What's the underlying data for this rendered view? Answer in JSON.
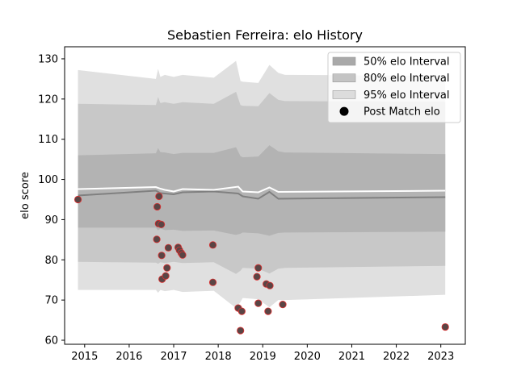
{
  "chart_data": {
    "type": "line",
    "title": "Sebastien Ferreira: elo History",
    "xlabel": "",
    "ylabel": "elo score",
    "xlim": [
      2014.55,
      2023.55
    ],
    "ylim": [
      59,
      133
    ],
    "x_ticks": [
      2015,
      2016,
      2017,
      2018,
      2019,
      2020,
      2021,
      2022,
      2023
    ],
    "y_ticks": [
      60,
      70,
      80,
      90,
      100,
      110,
      120,
      130
    ],
    "grid": false,
    "legend_position": "top-right",
    "series": [
      {
        "name": "95% elo Interval",
        "kind": "band",
        "color": "#e0e0e0",
        "x": [
          2014.85,
          2016.6,
          2016.65,
          2016.7,
          2016.8,
          2017.0,
          2017.2,
          2017.9,
          2018.4,
          2018.5,
          2018.55,
          2018.9,
          2019.15,
          2019.35,
          2019.5,
          2023.1
        ],
        "upper": [
          127.2,
          125,
          127.5,
          125.5,
          126,
          125.5,
          126,
          125.3,
          129.5,
          124.5,
          124.3,
          124,
          128.5,
          126.5,
          126,
          125.8
        ],
        "lower": [
          72.5,
          72.5,
          71.8,
          72.5,
          72.2,
          72.5,
          72,
          72.3,
          68,
          69.5,
          70.5,
          70.2,
          68.2,
          70,
          70,
          71.3
        ]
      },
      {
        "name": "80% elo Interval",
        "kind": "band",
        "color": "#c8c8c8",
        "x": [
          2014.85,
          2016.6,
          2016.65,
          2016.7,
          2016.8,
          2017.0,
          2017.2,
          2017.9,
          2018.4,
          2018.5,
          2018.55,
          2018.9,
          2019.15,
          2019.35,
          2019.5,
          2023.1
        ],
        "upper": [
          118.8,
          118.5,
          120.5,
          119,
          119.2,
          118.8,
          119.2,
          118.8,
          121.8,
          118.5,
          118.3,
          118.2,
          121.5,
          119.8,
          119.5,
          119.3
        ],
        "lower": [
          79.5,
          79.3,
          79,
          79.4,
          79.2,
          79.5,
          79.2,
          79.4,
          76.5,
          77.3,
          78,
          77.8,
          76.6,
          77.8,
          78,
          78.5
        ]
      },
      {
        "name": "50% elo Interval",
        "kind": "band",
        "color": "#b3b3b3",
        "x": [
          2014.85,
          2016.6,
          2016.65,
          2016.7,
          2016.8,
          2017.0,
          2017.2,
          2017.9,
          2018.4,
          2018.5,
          2018.55,
          2018.9,
          2019.15,
          2019.35,
          2019.5,
          2023.1
        ],
        "upper": [
          106,
          106.5,
          107.8,
          106.8,
          106.7,
          106.3,
          106.6,
          106.6,
          108,
          105.8,
          105.5,
          105.7,
          108.5,
          107,
          106.7,
          106.3
        ],
        "lower": [
          88,
          88,
          87.3,
          87.8,
          87.4,
          87.5,
          87.2,
          87.3,
          86.2,
          86.5,
          86.8,
          86.6,
          86,
          86.7,
          86.8,
          87
        ]
      },
      {
        "name": "Mean elo",
        "kind": "line",
        "color": "#808080",
        "x": [
          2014.85,
          2016.6,
          2016.7,
          2016.8,
          2017.0,
          2017.2,
          2017.9,
          2018.45,
          2018.55,
          2018.9,
          2019.15,
          2019.35,
          2023.1
        ],
        "y": [
          96,
          97.2,
          96.6,
          96.5,
          96.3,
          96.8,
          97,
          96.5,
          95.8,
          95.2,
          96.9,
          95.2,
          95.6
        ]
      },
      {
        "name": "Median elo",
        "kind": "line",
        "color": "#ffffff",
        "x": [
          2014.85,
          2016.6,
          2016.7,
          2016.8,
          2017.0,
          2017.2,
          2017.9,
          2018.45,
          2018.55,
          2018.9,
          2019.15,
          2019.35,
          2023.1
        ],
        "y": [
          97.6,
          98.1,
          97.7,
          97.4,
          97,
          97.6,
          97.4,
          98.2,
          97,
          96.8,
          98,
          96.9,
          97.2
        ]
      },
      {
        "name": "Post Match elo",
        "kind": "scatter",
        "color": "#000000",
        "edge_color": "#e03030",
        "x": [
          2014.85,
          2016.62,
          2016.63,
          2016.66,
          2016.67,
          2016.72,
          2016.73,
          2016.74,
          2016.82,
          2016.85,
          2016.88,
          2017.1,
          2017.13,
          2017.17,
          2017.2,
          2017.88,
          2017.88,
          2018.45,
          2018.5,
          2018.53,
          2018.87,
          2018.9,
          2018.9,
          2019.08,
          2019.12,
          2019.16,
          2019.45,
          2023.1
        ],
        "y": [
          95.0,
          85.1,
          93.2,
          89.0,
          95.8,
          88.8,
          81.1,
          75.2,
          76.0,
          78.0,
          83.0,
          83.1,
          82.4,
          81.7,
          81.2,
          83.7,
          74.4,
          68.0,
          62.4,
          67.2,
          75.8,
          69.2,
          78.0,
          74.0,
          67.2,
          73.6,
          68.9,
          63.3
        ]
      }
    ],
    "legend": [
      {
        "label": "50% elo Interval",
        "swatch": "patch",
        "color": "#a9a9a9"
      },
      {
        "label": "80% elo Interval",
        "swatch": "patch",
        "color": "#c4c4c4"
      },
      {
        "label": "95% elo Interval",
        "swatch": "patch",
        "color": "#dcdcdc"
      },
      {
        "label": "Post Match elo",
        "swatch": "dot",
        "color": "#000000"
      }
    ]
  }
}
